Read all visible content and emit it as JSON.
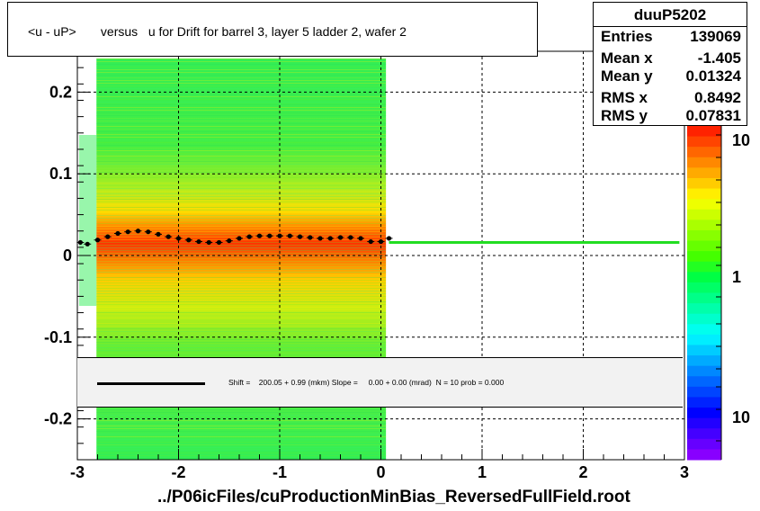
{
  "title": "<u - uP>       versus   u for Drift for barrel 3, layer 5 ladder 2, wafer 2",
  "xlabel": "../P06icFiles/cuProductionMinBias_ReversedFullField.root",
  "stats": {
    "name": "duuP5202",
    "rows": [
      {
        "label": "Entries",
        "value": "139069"
      },
      {
        "label": "Mean x",
        "value": "-1.405"
      },
      {
        "label": "Mean y",
        "value": "0.01324"
      },
      {
        "label": "RMS x",
        "value": "0.8492"
      },
      {
        "label": "RMS y",
        "value": "0.07831"
      }
    ]
  },
  "fit_text": "Shift =    200.05 + 0.99 (mkm) Slope =     0.00 + 0.00 (mrad)  N = 10 prob = 0.000",
  "chart_data": {
    "type": "heatmap",
    "title": "<u - uP>       versus   u for Drift for barrel 3, layer 5 ladder 2, wafer 2",
    "xlabel": "../P06icFiles/cuProductionMinBias_ReversedFullField.root",
    "ylabel": "",
    "xlim": [
      -3,
      3
    ],
    "ylim": [
      -0.25,
      0.25
    ],
    "x_ticks": [
      "-3",
      "-2",
      "-1",
      "0",
      "1",
      "2",
      "3"
    ],
    "y_ticks": [
      "-0.2",
      "-0.1",
      "0",
      "0.1",
      "0.2"
    ],
    "grid": true,
    "data_x_range": [
      -2.9,
      0.05
    ],
    "colorbar_labels": [
      "10",
      "1",
      "10"
    ],
    "profile": {
      "x": [
        -2.97,
        -2.9,
        -2.8,
        -2.7,
        -2.6,
        -2.5,
        -2.4,
        -2.3,
        -2.2,
        -2.1,
        -2.0,
        -1.9,
        -1.8,
        -1.7,
        -1.6,
        -1.5,
        -1.4,
        -1.3,
        -1.2,
        -1.1,
        -1.0,
        -0.9,
        -0.8,
        -0.7,
        -0.6,
        -0.5,
        -0.4,
        -0.3,
        -0.2,
        -0.1,
        0.0,
        0.08
      ],
      "y": [
        0.016,
        0.014,
        0.019,
        0.023,
        0.027,
        0.029,
        0.03,
        0.029,
        0.026,
        0.023,
        0.021,
        0.019,
        0.017,
        0.016,
        0.016,
        0.018,
        0.021,
        0.023,
        0.024,
        0.024,
        0.024,
        0.024,
        0.023,
        0.022,
        0.021,
        0.021,
        0.022,
        0.022,
        0.021,
        0.017,
        0.017,
        0.021
      ]
    },
    "fit_line": {
      "x": [
        0.08,
        2.95
      ],
      "y": [
        0.016,
        0.016
      ],
      "color": "#22dd22"
    },
    "colors": {
      "high": "#ff3300",
      "mid": "#ffee00",
      "low": "#22ee44",
      "frame": "#000000"
    }
  }
}
